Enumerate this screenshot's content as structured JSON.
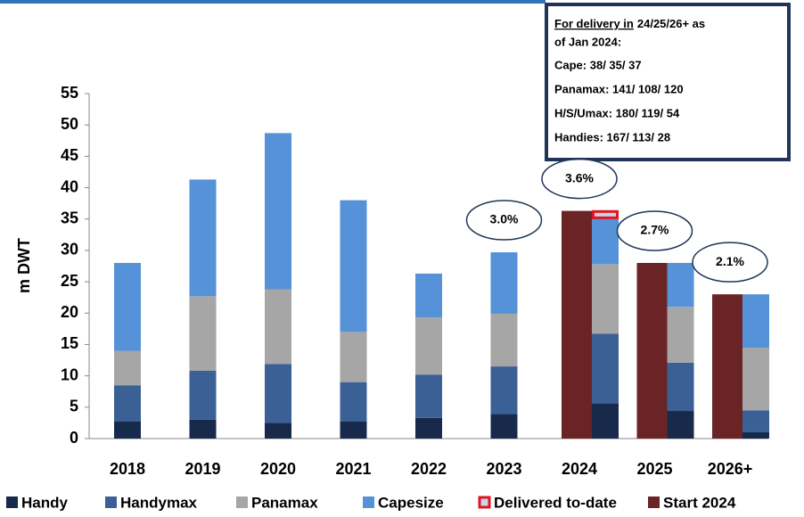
{
  "chart_data": {
    "type": "bar",
    "stacked": true,
    "y_label": "m DWT",
    "categories": [
      "2018",
      "2019",
      "2020",
      "2021",
      "2022",
      "2023",
      "2024",
      "2025",
      "2026+"
    ],
    "series": [
      {
        "name": "Handy",
        "color": "#172a4c",
        "values": [
          2.7,
          3.0,
          2.5,
          2.7,
          3.3,
          3.9,
          5.6,
          4.4,
          1.0
        ]
      },
      {
        "name": "Handymax",
        "color": "#3b6096",
        "values": [
          5.8,
          7.8,
          9.4,
          6.3,
          6.9,
          7.6,
          11.1,
          7.7,
          3.5
        ]
      },
      {
        "name": "Panamax",
        "color": "#a6a6a6",
        "values": [
          5.5,
          11.9,
          11.9,
          8.0,
          9.1,
          8.4,
          11.1,
          8.9,
          10.0
        ]
      },
      {
        "name": "Capesize",
        "color": "#5692d8",
        "values": [
          14.0,
          18.6,
          24.9,
          21.0,
          7.0,
          9.8,
          7.4,
          7.0,
          8.5
        ]
      },
      {
        "name": "Delivered to-date",
        "color": "#c6d6ec",
        "border_color": "#e2141e",
        "values": [
          null,
          null,
          null,
          null,
          null,
          null,
          1.0,
          null,
          null
        ]
      }
    ],
    "start_series": {
      "name": "Start 2024",
      "color": "#6b2425",
      "values": [
        null,
        null,
        null,
        null,
        null,
        null,
        36.3,
        28.0,
        23.0
      ]
    },
    "annotations": [
      {
        "category": 5,
        "text": "3.0%"
      },
      {
        "category": 6,
        "text": "3.6%"
      },
      {
        "category": 7,
        "text": "2.7%"
      },
      {
        "category": 8,
        "text": "2.1%"
      }
    ],
    "text_box": {
      "heading": [
        "For delivery in",
        "24/25/26+ as",
        "of Jan 2024:"
      ],
      "lines": [
        "Cape: 38/ 35/ 37",
        "Panamax: 141/ 108/ 120",
        "H/S/Umax: 180/ 119/ 54",
        "Handies: 167/ 113/ 28"
      ]
    },
    "ylim": [
      0,
      55
    ],
    "yticks": [
      0,
      5,
      10,
      15,
      20,
      25,
      30,
      35,
      40,
      45,
      50,
      55
    ],
    "grid": false
  }
}
